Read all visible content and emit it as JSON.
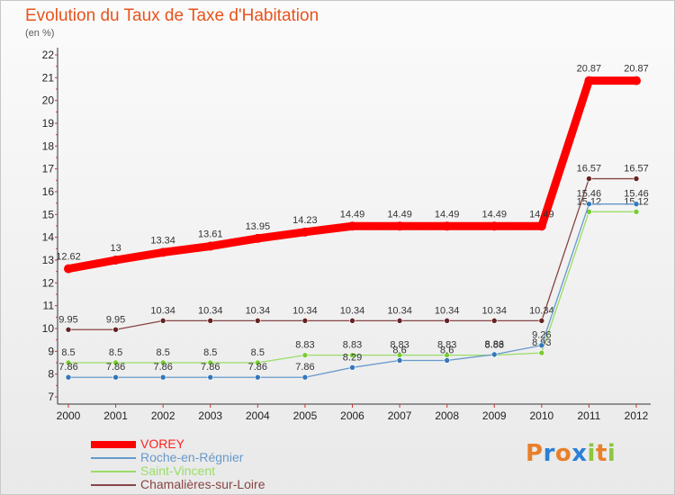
{
  "header": {
    "title": "Evolution du Taux de Taxe d'Habitation",
    "unit": "(en %)"
  },
  "chart_data": {
    "type": "line",
    "x": [
      "2000",
      "2001",
      "2002",
      "2003",
      "2004",
      "2005",
      "2006",
      "2007",
      "2008",
      "2009",
      "2010",
      "2011",
      "2012"
    ],
    "ylim": [
      7,
      22
    ],
    "yticks": [
      "7",
      "8",
      "9",
      "10",
      "11",
      "12",
      "13",
      "14",
      "15",
      "16",
      "17",
      "18",
      "19",
      "20",
      "21",
      "22"
    ],
    "grid": false,
    "legend_position": "bottom-left",
    "series": [
      {
        "name": "VOREY",
        "color": "#ff0000",
        "marker_color": "#ff0000",
        "values": [
          12.62,
          13,
          13.34,
          13.61,
          13.95,
          14.23,
          14.49,
          14.49,
          14.49,
          14.49,
          14.49,
          20.87,
          20.87
        ],
        "labels": [
          "12.62",
          "13",
          "13.34",
          "13.61",
          "13.95",
          "14.23",
          "14.49",
          "14.49",
          "14.49",
          "14.49",
          "14.49",
          "20.87",
          "20.87"
        ]
      },
      {
        "name": "Roche-en-Régnier",
        "color": "#6699cc",
        "marker_color": "#3377bb",
        "values": [
          7.86,
          7.86,
          7.86,
          7.86,
          7.86,
          7.86,
          8.29,
          8.6,
          8.6,
          8.86,
          9.26,
          15.46,
          15.46
        ],
        "labels": [
          "7.86",
          "7.86",
          "7.86",
          "7.86",
          "7.86",
          "7.86",
          "8.29",
          "8.6",
          "8.6",
          "8.86",
          "9.26",
          "15.46",
          "15.46"
        ]
      },
      {
        "name": "Saint-Vincent",
        "color": "#99dd66",
        "marker_color": "#77cc33",
        "values": [
          8.5,
          8.5,
          8.5,
          8.5,
          8.5,
          8.83,
          8.83,
          8.83,
          8.83,
          8.83,
          8.93,
          15.12,
          15.12
        ],
        "labels": [
          "8.5",
          "8.5",
          "8.5",
          "8.5",
          "8.5",
          "8.83",
          "8.83",
          "8.83",
          "8.83",
          "8.83",
          "8.93",
          "15.12",
          "15.12"
        ]
      },
      {
        "name": "Chamalières-sur-Loire",
        "color": "#884444",
        "marker_color": "#662222",
        "values": [
          9.95,
          9.95,
          10.34,
          10.34,
          10.34,
          10.34,
          10.34,
          10.34,
          10.34,
          10.34,
          10.34,
          16.57,
          16.57
        ],
        "labels": [
          "9.95",
          "9.95",
          "10.34",
          "10.34",
          "10.34",
          "10.34",
          "10.34",
          "10.34",
          "10.34",
          "10.34",
          "10.34",
          "16.57",
          "16.57"
        ]
      }
    ]
  },
  "logo": {
    "letters": [
      "P",
      "r",
      "o",
      "x",
      "i",
      "t",
      "i"
    ],
    "colors": [
      "#e8802a",
      "#2a7fd6",
      "#e8802a",
      "#2a7fd6",
      "#8cc63f",
      "#e8802a",
      "#8cc63f"
    ]
  }
}
